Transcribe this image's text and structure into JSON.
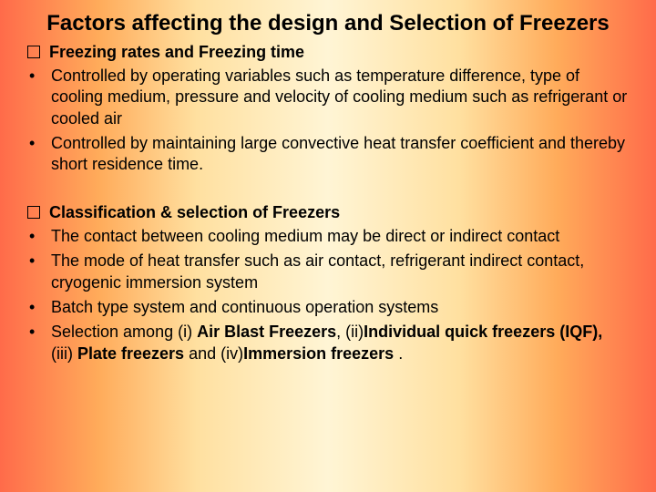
{
  "title": "Factors affecting the design and Selection of Freezers",
  "section1": {
    "heading": "Freezing rates and Freezing time",
    "bullets": [
      "Controlled by operating variables such as temperature difference, type of cooling medium, pressure and velocity of cooling medium such as refrigerant or cooled air",
      "Controlled by maintaining  large convective heat transfer coefficient and thereby short residence time."
    ]
  },
  "section2": {
    "heading": " Classification & selection of Freezers",
    "bullets": [
      "The contact between cooling medium may be direct or indirect contact",
      "The mode of heat transfer such as air contact, refrigerant indirect contact, cryogenic immersion system",
      "Batch type system and continuous operation systems"
    ],
    "lastBullet": {
      "prefix": "Selection among (i) ",
      "b1": "Air Blast Freezers",
      "mid1": ", (ii)",
      "b2": "Individual quick freezers (IQF),",
      "mid2": " (iii) ",
      "b3": "Plate freezers",
      "mid3": " and (iv)",
      "b4": "Immersion freezers ",
      "suffix": "."
    }
  },
  "style": {
    "title_fontsize": 24,
    "body_fontsize": 18,
    "text_color": "#000000",
    "gradient_colors": [
      "#ff6b4a",
      "#ffab5a",
      "#ffe0a0",
      "#fff5d5",
      "#ffe0a0",
      "#ffab5a",
      "#ff6b4a"
    ]
  }
}
